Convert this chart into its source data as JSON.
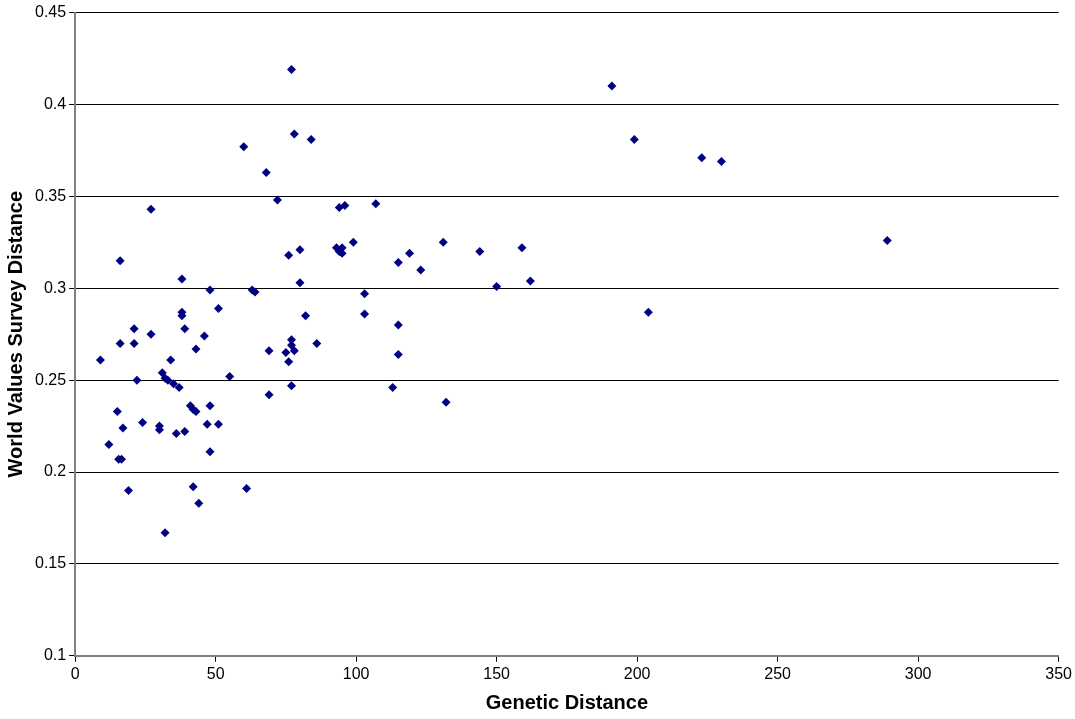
{
  "chart_data": {
    "type": "scatter",
    "xlabel": "Genetic Distance",
    "ylabel": "World Values Survey Distance",
    "xlim": [
      0,
      350
    ],
    "xticks": [
      0,
      50,
      100,
      150,
      200,
      250,
      300,
      350
    ],
    "ylim": [
      0.1,
      0.45
    ],
    "yticks": [
      0.1,
      0.15,
      0.2,
      0.25,
      0.3,
      0.35,
      0.4,
      0.45
    ],
    "grid": "y",
    "legend": false,
    "marker": "diamond",
    "series": [
      {
        "color": "#000080",
        "x": [
          9,
          12,
          15,
          15.5,
          16.5,
          16,
          16,
          17,
          19,
          21,
          21,
          22,
          24,
          27,
          27,
          30,
          30,
          31,
          32,
          32,
          33,
          34,
          35,
          36,
          37,
          38,
          38,
          38,
          39,
          39,
          41,
          42,
          42,
          43,
          43,
          44,
          46,
          47,
          48,
          48,
          48,
          51,
          51,
          55,
          60,
          61,
          63,
          64,
          68,
          69,
          69,
          72,
          75,
          76,
          76,
          77,
          77,
          77,
          77,
          78,
          78,
          80,
          80,
          82,
          84,
          86,
          93,
          94,
          94,
          95,
          95,
          96,
          99,
          103,
          103,
          107,
          113,
          115,
          115,
          115,
          119,
          123,
          131,
          132,
          144,
          150,
          159,
          162,
          191,
          199,
          204,
          223,
          230,
          289
        ],
        "values": [
          0.261,
          0.215,
          0.233,
          0.207,
          0.207,
          0.27,
          0.315,
          0.224,
          0.19,
          0.278,
          0.27,
          0.25,
          0.227,
          0.275,
          0.343,
          0.223,
          0.225,
          0.254,
          0.251,
          0.167,
          0.25,
          0.261,
          0.248,
          0.221,
          0.246,
          0.305,
          0.287,
          0.285,
          0.278,
          0.222,
          0.236,
          0.234,
          0.192,
          0.233,
          0.267,
          0.183,
          0.274,
          0.226,
          0.236,
          0.211,
          0.299,
          0.226,
          0.289,
          0.252,
          0.377,
          0.191,
          0.299,
          0.298,
          0.363,
          0.266,
          0.242,
          0.348,
          0.265,
          0.26,
          0.318,
          0.419,
          0.272,
          0.269,
          0.247,
          0.384,
          0.266,
          0.321,
          0.303,
          0.285,
          0.381,
          0.27,
          0.322,
          0.344,
          0.32,
          0.322,
          0.319,
          0.345,
          0.325,
          0.297,
          0.286,
          0.346,
          0.246,
          0.314,
          0.28,
          0.264,
          0.319,
          0.31,
          0.325,
          0.238,
          0.32,
          0.301,
          0.322,
          0.304,
          0.41,
          0.381,
          0.287,
          0.371,
          0.369,
          0.326
        ]
      }
    ]
  }
}
